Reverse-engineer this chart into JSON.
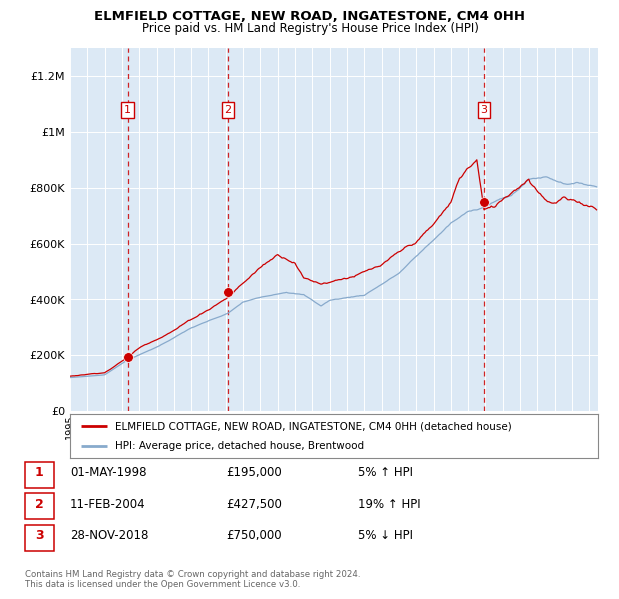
{
  "title": "ELMFIELD COTTAGE, NEW ROAD, INGATESTONE, CM4 0HH",
  "subtitle": "Price paid vs. HM Land Registry's House Price Index (HPI)",
  "property_label": "ELMFIELD COTTAGE, NEW ROAD, INGATESTONE, CM4 0HH (detached house)",
  "hpi_label": "HPI: Average price, detached house, Brentwood",
  "sales": [
    {
      "num": 1,
      "date": "01-MAY-1998",
      "price": 195000,
      "year": 1998.33,
      "pct": "5%",
      "dir": "↑"
    },
    {
      "num": 2,
      "date": "11-FEB-2004",
      "price": 427500,
      "year": 2004.12,
      "pct": "19%",
      "dir": "↑"
    },
    {
      "num": 3,
      "date": "28-NOV-2018",
      "price": 750000,
      "year": 2018.92,
      "pct": "5%",
      "dir": "↓"
    }
  ],
  "property_line_color": "#cc0000",
  "hpi_line_color": "#88aacc",
  "sale_marker_color": "#cc0000",
  "dashed_line_color": "#cc0000",
  "plot_bg_color": "#dce9f5",
  "footer": "Contains HM Land Registry data © Crown copyright and database right 2024.\nThis data is licensed under the Open Government Licence v3.0.",
  "ylim": [
    0,
    1300000
  ],
  "yticks": [
    0,
    200000,
    400000,
    600000,
    800000,
    1000000,
    1200000
  ],
  "ytick_labels": [
    "£0",
    "£200K",
    "£400K",
    "£600K",
    "£800K",
    "£1M",
    "£1.2M"
  ],
  "xstart": 1995,
  "xend": 2025.5
}
